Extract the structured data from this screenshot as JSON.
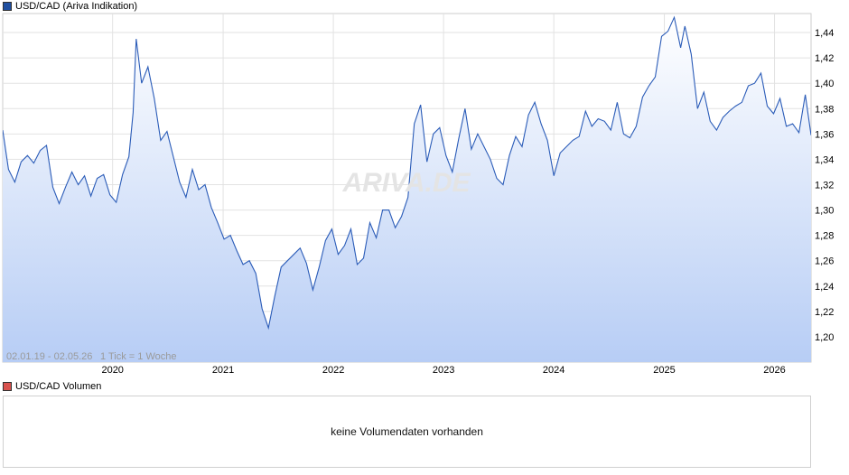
{
  "price_chart": {
    "legend_label": "USD/CAD (Ariva Indikation)",
    "legend_color": "#1f4fa0",
    "watermark": "ARIVA.DE",
    "range_label": "02.01.19 - 02.05.26",
    "tick_label": "1 Tick = 1 Woche",
    "line_color": "#2b5cb8",
    "fill_top_color": "#ffffff",
    "fill_bottom_color": "#b7cdf5"
  },
  "volume_chart": {
    "legend_label": "USD/CAD Volumen",
    "legend_color": "#d9534f",
    "message": "keine Volumendaten vorhanden"
  },
  "chart_data": {
    "type": "area",
    "title": "USD/CAD (Ariva Indikation)",
    "xlabel": "",
    "ylabel": "",
    "x_range": [
      "2019-01-02",
      "2026-05-02"
    ],
    "ylim": [
      1.18,
      1.455
    ],
    "y_ticks": [
      1.2,
      1.22,
      1.24,
      1.26,
      1.28,
      1.3,
      1.32,
      1.34,
      1.36,
      1.38,
      1.4,
      1.42,
      1.44
    ],
    "y_tick_labels": [
      "1,20",
      "1,22",
      "1,24",
      "1,26",
      "1,28",
      "1,30",
      "1,32",
      "1,34",
      "1,36",
      "1,38",
      "1,40",
      "1,42",
      "1,44"
    ],
    "x_ticks": [
      "2020-01-01",
      "2021-01-01",
      "2022-01-01",
      "2023-01-01",
      "2024-01-01",
      "2025-01-01",
      "2026-01-01"
    ],
    "x_tick_labels": [
      "2020",
      "2021",
      "2022",
      "2023",
      "2024",
      "2025",
      "2026"
    ],
    "grid": true,
    "series": [
      {
        "name": "USD/CAD",
        "points": [
          [
            "2019-01-02",
            1.363
          ],
          [
            "2019-01-21",
            1.332
          ],
          [
            "2019-02-11",
            1.322
          ],
          [
            "2019-03-04",
            1.338
          ],
          [
            "2019-03-25",
            1.343
          ],
          [
            "2019-04-15",
            1.337
          ],
          [
            "2019-05-06",
            1.347
          ],
          [
            "2019-05-27",
            1.351
          ],
          [
            "2019-06-17",
            1.318
          ],
          [
            "2019-07-08",
            1.305
          ],
          [
            "2019-07-29",
            1.318
          ],
          [
            "2019-08-19",
            1.33
          ],
          [
            "2019-09-09",
            1.32
          ],
          [
            "2019-09-30",
            1.327
          ],
          [
            "2019-10-21",
            1.311
          ],
          [
            "2019-11-11",
            1.325
          ],
          [
            "2019-12-02",
            1.328
          ],
          [
            "2019-12-23",
            1.312
          ],
          [
            "2020-01-13",
            1.306
          ],
          [
            "2020-02-03",
            1.328
          ],
          [
            "2020-02-24",
            1.342
          ],
          [
            "2020-03-09",
            1.377
          ],
          [
            "2020-03-19",
            1.435
          ],
          [
            "2020-04-06",
            1.4
          ],
          [
            "2020-04-27",
            1.413
          ],
          [
            "2020-05-18",
            1.388
          ],
          [
            "2020-06-08",
            1.355
          ],
          [
            "2020-06-29",
            1.362
          ],
          [
            "2020-07-20",
            1.342
          ],
          [
            "2020-08-10",
            1.322
          ],
          [
            "2020-08-31",
            1.31
          ],
          [
            "2020-09-21",
            1.332
          ],
          [
            "2020-10-12",
            1.316
          ],
          [
            "2020-11-02",
            1.32
          ],
          [
            "2020-11-23",
            1.302
          ],
          [
            "2020-12-14",
            1.29
          ],
          [
            "2021-01-04",
            1.277
          ],
          [
            "2021-01-25",
            1.28
          ],
          [
            "2021-02-15",
            1.268
          ],
          [
            "2021-03-08",
            1.257
          ],
          [
            "2021-03-29",
            1.26
          ],
          [
            "2021-04-19",
            1.25
          ],
          [
            "2021-05-10",
            1.222
          ],
          [
            "2021-05-31",
            1.207
          ],
          [
            "2021-06-21",
            1.232
          ],
          [
            "2021-07-12",
            1.255
          ],
          [
            "2021-08-02",
            1.26
          ],
          [
            "2021-08-23",
            1.265
          ],
          [
            "2021-09-13",
            1.27
          ],
          [
            "2021-10-04",
            1.258
          ],
          [
            "2021-10-25",
            1.237
          ],
          [
            "2021-11-15",
            1.255
          ],
          [
            "2021-12-06",
            1.276
          ],
          [
            "2021-12-27",
            1.285
          ],
          [
            "2022-01-17",
            1.265
          ],
          [
            "2022-02-07",
            1.272
          ],
          [
            "2022-02-28",
            1.285
          ],
          [
            "2022-03-21",
            1.257
          ],
          [
            "2022-04-11",
            1.262
          ],
          [
            "2022-05-02",
            1.29
          ],
          [
            "2022-05-23",
            1.278
          ],
          [
            "2022-06-13",
            1.3
          ],
          [
            "2022-07-04",
            1.3
          ],
          [
            "2022-07-25",
            1.286
          ],
          [
            "2022-08-15",
            1.295
          ],
          [
            "2022-09-05",
            1.31
          ],
          [
            "2022-09-26",
            1.368
          ],
          [
            "2022-10-17",
            1.383
          ],
          [
            "2022-11-07",
            1.338
          ],
          [
            "2022-11-28",
            1.36
          ],
          [
            "2022-12-19",
            1.365
          ],
          [
            "2023-01-09",
            1.343
          ],
          [
            "2023-01-30",
            1.33
          ],
          [
            "2023-02-20",
            1.356
          ],
          [
            "2023-03-13",
            1.38
          ],
          [
            "2023-04-03",
            1.348
          ],
          [
            "2023-04-24",
            1.36
          ],
          [
            "2023-05-15",
            1.35
          ],
          [
            "2023-06-05",
            1.34
          ],
          [
            "2023-06-26",
            1.325
          ],
          [
            "2023-07-17",
            1.32
          ],
          [
            "2023-08-07",
            1.343
          ],
          [
            "2023-08-28",
            1.358
          ],
          [
            "2023-09-18",
            1.35
          ],
          [
            "2023-10-09",
            1.375
          ],
          [
            "2023-10-30",
            1.385
          ],
          [
            "2023-11-20",
            1.368
          ],
          [
            "2023-12-11",
            1.355
          ],
          [
            "2024-01-01",
            1.327
          ],
          [
            "2024-01-22",
            1.345
          ],
          [
            "2024-02-12",
            1.35
          ],
          [
            "2024-03-04",
            1.355
          ],
          [
            "2024-03-25",
            1.358
          ],
          [
            "2024-04-15",
            1.378
          ],
          [
            "2024-05-06",
            1.366
          ],
          [
            "2024-05-27",
            1.372
          ],
          [
            "2024-06-17",
            1.37
          ],
          [
            "2024-07-08",
            1.363
          ],
          [
            "2024-07-29",
            1.385
          ],
          [
            "2024-08-19",
            1.36
          ],
          [
            "2024-09-09",
            1.357
          ],
          [
            "2024-09-30",
            1.366
          ],
          [
            "2024-10-21",
            1.389
          ],
          [
            "2024-11-11",
            1.398
          ],
          [
            "2024-12-02",
            1.405
          ],
          [
            "2024-12-23",
            1.437
          ],
          [
            "2025-01-13",
            1.441
          ],
          [
            "2025-02-03",
            1.452
          ],
          [
            "2025-02-24",
            1.428
          ],
          [
            "2025-03-10",
            1.445
          ],
          [
            "2025-03-31",
            1.423
          ],
          [
            "2025-04-21",
            1.38
          ],
          [
            "2025-05-12",
            1.393
          ],
          [
            "2025-06-02",
            1.37
          ],
          [
            "2025-06-23",
            1.363
          ],
          [
            "2025-07-14",
            1.373
          ],
          [
            "2025-08-04",
            1.378
          ],
          [
            "2025-08-25",
            1.382
          ],
          [
            "2025-09-15",
            1.385
          ],
          [
            "2025-10-06",
            1.398
          ],
          [
            "2025-10-27",
            1.4
          ],
          [
            "2025-11-17",
            1.408
          ],
          [
            "2025-12-08",
            1.382
          ],
          [
            "2025-12-29",
            1.376
          ],
          [
            "2026-01-19",
            1.388
          ],
          [
            "2026-02-09",
            1.366
          ],
          [
            "2026-03-02",
            1.368
          ],
          [
            "2026-03-23",
            1.361
          ],
          [
            "2026-04-13",
            1.391
          ],
          [
            "2026-05-02",
            1.359
          ]
        ]
      }
    ]
  }
}
